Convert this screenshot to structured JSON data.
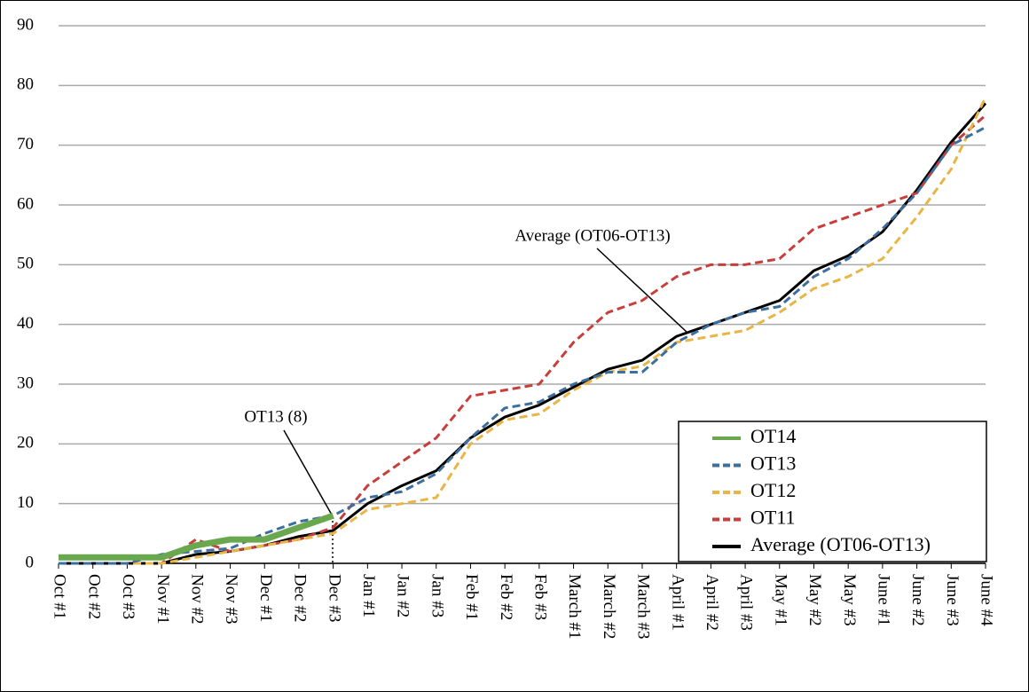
{
  "chart_data": {
    "type": "line",
    "categories": [
      "Oct #1",
      "Oct #2",
      "Oct #3",
      "Nov #1",
      "Nov #2",
      "Nov #3",
      "Dec #1",
      "Dec #2",
      "Dec #3",
      "Jan #1",
      "Jan #2",
      "Jan #3",
      "Feb #1",
      "Feb #2",
      "Feb #3",
      "March #1",
      "March #2",
      "March #3",
      "April #1",
      "April #2",
      "April #3",
      "May #1",
      "May #2",
      "May #3",
      "June #1",
      "June #2",
      "June #3",
      "June #4"
    ],
    "xtick_label_colors": [
      "#000000",
      "#000000",
      "#000000",
      "#000000",
      "#000000",
      "#000000",
      "#000000",
      "#000000",
      "#000000",
      "#999999",
      "#999999",
      "#999999",
      "#999999",
      "#999999",
      "#999999",
      "#999999",
      "#999999",
      "#999999",
      "#999999",
      "#999999",
      "#999999",
      "#999999",
      "#999999",
      "#999999",
      "#999999",
      "#999999",
      "#999999",
      "#999999"
    ],
    "series": [
      {
        "name": "OT14",
        "color": "#6aa84f",
        "style": "solid",
        "width": 7,
        "values": [
          1,
          1,
          1,
          1,
          3,
          4,
          4,
          6,
          8,
          null,
          null,
          null,
          null,
          null,
          null,
          null,
          null,
          null,
          null,
          null,
          null,
          null,
          null,
          null,
          null,
          null,
          null,
          null
        ]
      },
      {
        "name": "OT13",
        "color": "#3d6e9e",
        "style": "dashed",
        "width": 3,
        "values": [
          0,
          0,
          0,
          1.5,
          2,
          2.5,
          5,
          7,
          8,
          11,
          12,
          15,
          21,
          26,
          27,
          30,
          32,
          32,
          37,
          40,
          42,
          43,
          48,
          51,
          56,
          62,
          70,
          73
        ]
      },
      {
        "name": "OT12",
        "color": "#e8b547",
        "style": "dashed",
        "width": 3,
        "values": [
          0,
          0,
          0,
          0,
          1,
          2,
          3,
          4,
          5,
          9,
          10,
          11,
          20,
          24,
          25,
          29,
          32,
          33,
          37,
          38,
          39,
          42,
          46,
          48,
          51,
          58,
          66,
          78
        ]
      },
      {
        "name": "OT11",
        "color": "#c73e3a",
        "style": "dashed",
        "width": 3,
        "values": [
          0,
          0,
          0,
          0,
          4,
          2,
          3,
          4,
          6,
          13,
          17,
          21,
          28,
          29,
          30,
          37,
          42,
          44,
          48,
          50,
          50,
          51,
          56,
          58,
          60,
          62,
          70,
          75
        ]
      },
      {
        "name": "Average (OT06-OT13)",
        "color": "#000000",
        "style": "solid",
        "width": 3,
        "values": [
          0,
          0,
          0,
          0,
          1.5,
          2,
          3,
          4.5,
          5.5,
          10,
          13,
          15.5,
          21,
          24.5,
          26.5,
          29.5,
          32.5,
          34,
          38,
          40,
          42,
          44,
          49,
          51.5,
          55.5,
          62.5,
          70.5,
          77
        ]
      }
    ],
    "ylim": [
      0,
      90
    ],
    "yticks": [
      0,
      10,
      20,
      30,
      40,
      50,
      60,
      70,
      80,
      90
    ],
    "grid": true,
    "annotations": [
      "Average (OT06-OT13)",
      "OT13 (8)"
    ],
    "legend": "lower right"
  }
}
